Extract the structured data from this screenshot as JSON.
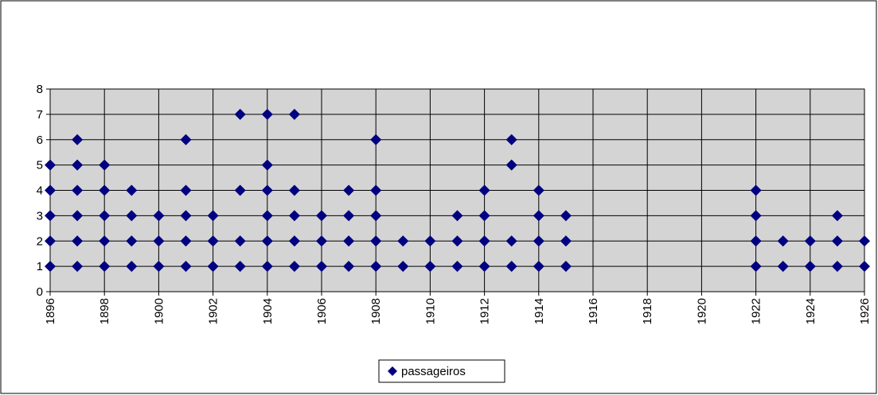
{
  "chart_data": {
    "type": "scatter",
    "series": [
      {
        "name": "passageiros",
        "color": "#000080",
        "x": [
          1896,
          1896,
          1896,
          1896,
          1896,
          1897,
          1897,
          1897,
          1897,
          1897,
          1897,
          1898,
          1898,
          1898,
          1898,
          1898,
          1899,
          1899,
          1899,
          1899,
          1900,
          1900,
          1900,
          1901,
          1901,
          1901,
          1901,
          1901,
          1902,
          1902,
          1902,
          1903,
          1903,
          1903,
          1903,
          1904,
          1904,
          1904,
          1904,
          1904,
          1904,
          1905,
          1905,
          1905,
          1905,
          1905,
          1906,
          1906,
          1906,
          1907,
          1907,
          1907,
          1907,
          1908,
          1908,
          1908,
          1908,
          1908,
          1909,
          1909,
          1910,
          1910,
          1911,
          1911,
          1911,
          1912,
          1912,
          1912,
          1912,
          1913,
          1913,
          1913,
          1913,
          1914,
          1914,
          1914,
          1914,
          1915,
          1915,
          1915,
          1922,
          1922,
          1922,
          1922,
          1923,
          1923,
          1924,
          1924,
          1925,
          1925,
          1925,
          1926,
          1926
        ],
        "values": [
          1,
          2,
          3,
          4,
          5,
          1,
          2,
          3,
          4,
          5,
          6,
          1,
          2,
          3,
          4,
          5,
          1,
          2,
          3,
          4,
          1,
          2,
          3,
          1,
          2,
          3,
          4,
          6,
          1,
          2,
          3,
          1,
          2,
          4,
          7,
          1,
          2,
          3,
          4,
          5,
          7,
          1,
          2,
          3,
          4,
          7,
          1,
          2,
          3,
          1,
          2,
          3,
          4,
          1,
          2,
          3,
          4,
          6,
          1,
          2,
          1,
          2,
          1,
          2,
          3,
          1,
          2,
          3,
          4,
          1,
          2,
          5,
          6,
          1,
          2,
          3,
          4,
          1,
          2,
          3,
          1,
          2,
          3,
          4,
          1,
          2,
          1,
          2,
          1,
          2,
          3,
          1,
          2
        ]
      }
    ],
    "xlim": [
      1896,
      1926
    ],
    "xticks": [
      1896,
      1898,
      1900,
      1902,
      1904,
      1906,
      1908,
      1910,
      1912,
      1914,
      1916,
      1918,
      1920,
      1922,
      1924,
      1926
    ],
    "ylim": [
      0,
      8
    ],
    "yticks": [
      0,
      1,
      2,
      3,
      4,
      5,
      6,
      7,
      8
    ],
    "grid": true,
    "legend": "bottom"
  }
}
